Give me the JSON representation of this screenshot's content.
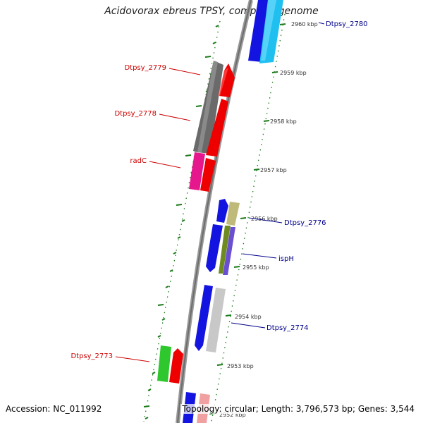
{
  "title": "Acidovorax ebreus TPSY, complete genome",
  "accession": "Accession: NC_011992",
  "stats": "Topology: circular; Length: 3,796,573 bp; Genes: 3,544",
  "colors": {
    "backbone": "#8a8a8a",
    "tick": "#1a7a1a",
    "left_label": "#cc0000",
    "right_label": "#00008b"
  },
  "kbp_markers": [
    "2960 kbp",
    "2959 kbp",
    "2958 kbp",
    "2957 kbp",
    "2956 kbp",
    "2955 kbp",
    "2954 kbp",
    "2953 kbp",
    "2952 kbp"
  ],
  "genes": [
    {
      "label": "Dtpsy_2780",
      "side": "right"
    },
    {
      "label": "Dtpsy_2779",
      "side": "left"
    },
    {
      "label": "Dtpsy_2778",
      "side": "left"
    },
    {
      "label": "radC",
      "side": "left"
    },
    {
      "label": "Dtpsy_2776",
      "side": "right"
    },
    {
      "label": "ispH",
      "side": "right"
    },
    {
      "label": "Dtpsy_2774",
      "side": "right"
    },
    {
      "label": "Dtpsy_2773",
      "side": "left"
    }
  ]
}
